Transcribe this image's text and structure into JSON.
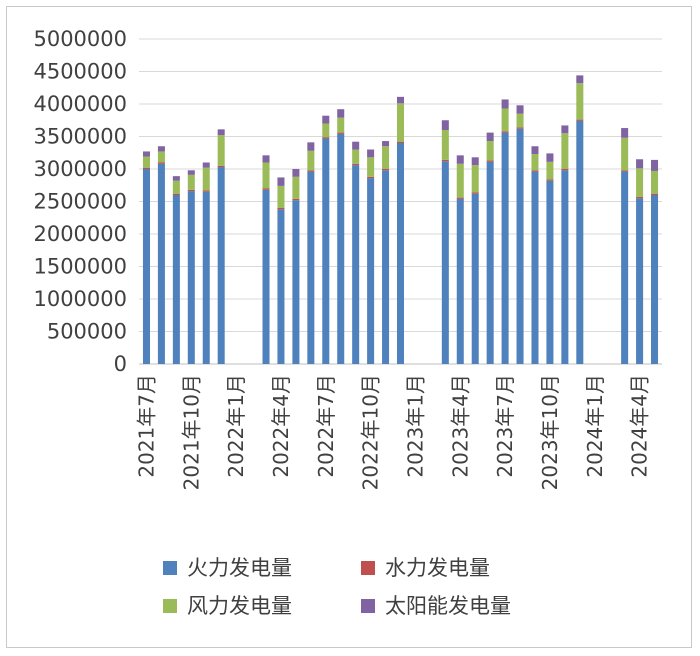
{
  "chart_data": {
    "type": "bar",
    "stacked": true,
    "title": "",
    "xlabel": "",
    "ylabel": "",
    "ylim": [
      0,
      5000000
    ],
    "yticks": [
      0,
      500000,
      1000000,
      1500000,
      2000000,
      2500000,
      3000000,
      3500000,
      4000000,
      4500000,
      5000000
    ],
    "grid": true,
    "legend_position": "bottom",
    "categories": [
      "2021年7月",
      "2021年8月",
      "2021年9月",
      "2021年10月",
      "2021年11月",
      "2021年12月",
      "2022年1月",
      "2022年2月",
      "2022年3月",
      "2022年4月",
      "2022年5月",
      "2022年6月",
      "2022年7月",
      "2022年8月",
      "2022年9月",
      "2022年10月",
      "2022年11月",
      "2022年12月",
      "2023年1月",
      "2023年2月",
      "2023年3月",
      "2023年4月",
      "2023年5月",
      "2023年6月",
      "2023年7月",
      "2023年8月",
      "2023年9月",
      "2023年10月",
      "2023年11月",
      "2023年12月",
      "2024年1月",
      "2024年2月",
      "2024年3月",
      "2024年4月",
      "2024年5月"
    ],
    "x_tick_labels": [
      "2021年7月",
      "2021年10月",
      "2022年1月",
      "2022年4月",
      "2022年7月",
      "2022年10月",
      "2023年1月",
      "2023年4月",
      "2023年7月",
      "2023年10月",
      "2024年1月",
      "2024年4月"
    ],
    "series": [
      {
        "name": "火力发电量",
        "color": "#4f81bd",
        "values": [
          3000000,
          3080000,
          2600000,
          2660000,
          2650000,
          3030000,
          null,
          null,
          2680000,
          2380000,
          2520000,
          2960000,
          3470000,
          3540000,
          3060000,
          2860000,
          2980000,
          3400000,
          null,
          null,
          3120000,
          2540000,
          2620000,
          3110000,
          3560000,
          3620000,
          2960000,
          2820000,
          2980000,
          3740000,
          null,
          null,
          2960000,
          2550000,
          2600000
        ]
      },
      {
        "name": "水力发电量",
        "color": "#c0504d",
        "values": [
          20000,
          20000,
          20000,
          20000,
          20000,
          20000,
          null,
          null,
          20000,
          20000,
          20000,
          20000,
          20000,
          20000,
          20000,
          20000,
          20000,
          20000,
          null,
          null,
          20000,
          20000,
          20000,
          20000,
          20000,
          20000,
          20000,
          20000,
          20000,
          20000,
          null,
          null,
          20000,
          20000,
          20000
        ]
      },
      {
        "name": "风力发电量",
        "color": "#9bbb59",
        "values": [
          170000,
          170000,
          200000,
          230000,
          350000,
          470000,
          null,
          null,
          400000,
          340000,
          340000,
          300000,
          210000,
          230000,
          220000,
          300000,
          350000,
          590000,
          null,
          null,
          460000,
          520000,
          420000,
          300000,
          350000,
          210000,
          250000,
          270000,
          550000,
          560000,
          null,
          null,
          500000,
          440000,
          350000
        ]
      },
      {
        "name": "太阳能发电量",
        "color": "#8064a2",
        "values": [
          80000,
          80000,
          70000,
          70000,
          80000,
          90000,
          null,
          null,
          110000,
          130000,
          120000,
          130000,
          120000,
          130000,
          120000,
          120000,
          80000,
          100000,
          null,
          null,
          150000,
          130000,
          120000,
          130000,
          140000,
          130000,
          120000,
          130000,
          120000,
          120000,
          null,
          null,
          150000,
          140000,
          170000
        ]
      }
    ]
  }
}
